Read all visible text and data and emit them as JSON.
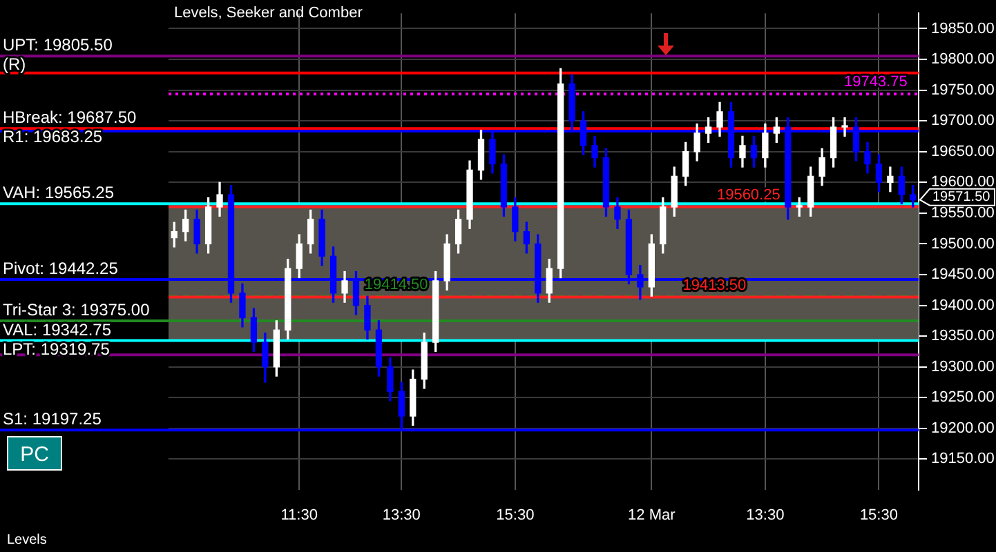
{
  "chart_data": {
    "type": "candlestick",
    "title": "Levels, Seeker and Comber",
    "categories": [
      null,
      null,
      null,
      null,
      null,
      null,
      null,
      null,
      null,
      null,
      null,
      "11:30",
      null,
      null,
      null,
      null,
      null,
      null,
      null,
      null,
      "13:30",
      null,
      null,
      null,
      null,
      null,
      null,
      null,
      null,
      null,
      "15:30",
      null,
      null,
      null,
      null,
      null,
      null,
      null,
      null,
      null,
      null,
      null,
      "12 Mar",
      null,
      null,
      null,
      null,
      null,
      null,
      null,
      null,
      null,
      "13:30",
      null,
      null,
      null,
      null,
      null,
      null,
      null,
      null,
      null,
      "15:30",
      null,
      null,
      null
    ],
    "ohlc": [
      [
        19510,
        19535,
        19495,
        19520
      ],
      [
        19520,
        19555,
        19505,
        19540
      ],
      [
        19540,
        19555,
        19485,
        19500
      ],
      [
        19500,
        19575,
        19485,
        19560
      ],
      [
        19560,
        19600,
        19545,
        19580
      ],
      [
        19580,
        19595,
        19405,
        19420
      ],
      [
        19420,
        19435,
        19365,
        19380
      ],
      [
        19380,
        19395,
        19325,
        19340
      ],
      [
        19340,
        19355,
        19275,
        19300
      ],
      [
        19300,
        19375,
        19285,
        19360
      ],
      [
        19360,
        19475,
        19345,
        19460
      ],
      [
        19460,
        19515,
        19445,
        19500
      ],
      [
        19500,
        19555,
        19485,
        19540
      ],
      [
        19540,
        19555,
        19465,
        19480
      ],
      [
        19480,
        19495,
        19405,
        19420
      ],
      [
        19420,
        19455,
        19405,
        19440
      ],
      [
        19440,
        19455,
        19385,
        19400
      ],
      [
        19400,
        19415,
        19345,
        19360
      ],
      [
        19360,
        19375,
        19285,
        19300
      ],
      [
        19300,
        19315,
        19245,
        19260
      ],
      [
        19260,
        19275,
        19200,
        19220
      ],
      [
        19220,
        19295,
        19205,
        19280
      ],
      [
        19280,
        19355,
        19265,
        19340
      ],
      [
        19340,
        19455,
        19325,
        19440
      ],
      [
        19440,
        19515,
        19425,
        19500
      ],
      [
        19500,
        19555,
        19485,
        19540
      ],
      [
        19540,
        19635,
        19525,
        19620
      ],
      [
        19620,
        19685,
        19605,
        19670
      ],
      [
        19670,
        19685,
        19615,
        19630
      ],
      [
        19630,
        19645,
        19545,
        19560
      ],
      [
        19560,
        19575,
        19505,
        19520
      ],
      [
        19520,
        19535,
        19485,
        19500
      ],
      [
        19500,
        19515,
        19405,
        19420
      ],
      [
        19420,
        19475,
        19405,
        19460
      ],
      [
        19460,
        19785,
        19445,
        19760
      ],
      [
        19760,
        19775,
        19685,
        19700
      ],
      [
        19700,
        19715,
        19645,
        19660
      ],
      [
        19660,
        19675,
        19625,
        19640
      ],
      [
        19640,
        19655,
        19545,
        19560
      ],
      [
        19560,
        19575,
        19525,
        19540
      ],
      [
        19540,
        19555,
        19435,
        19450
      ],
      [
        19450,
        19465,
        19410,
        19430
      ],
      [
        19430,
        19515,
        19415,
        19500
      ],
      [
        19500,
        19575,
        19485,
        19560
      ],
      [
        19560,
        19625,
        19545,
        19610
      ],
      [
        19610,
        19665,
        19595,
        19650
      ],
      [
        19650,
        19695,
        19635,
        19680
      ],
      [
        19680,
        19705,
        19665,
        19690
      ],
      [
        19690,
        19730,
        19675,
        19715
      ],
      [
        19715,
        19730,
        19625,
        19640
      ],
      [
        19640,
        19675,
        19625,
        19660
      ],
      [
        19660,
        19675,
        19625,
        19640
      ],
      [
        19640,
        19695,
        19625,
        19680
      ],
      [
        19680,
        19705,
        19665,
        19690
      ],
      [
        19690,
        19705,
        19540,
        19560
      ],
      [
        19560,
        19575,
        19545,
        19560
      ],
      [
        19560,
        19625,
        19545,
        19610
      ],
      [
        19610,
        19655,
        19595,
        19640
      ],
      [
        19640,
        19705,
        19625,
        19690
      ],
      [
        19690,
        19705,
        19675,
        19690
      ],
      [
        19690,
        19705,
        19635,
        19650
      ],
      [
        19650,
        19665,
        19615,
        19630
      ],
      [
        19630,
        19645,
        19585,
        19600
      ],
      [
        19600,
        19625,
        19585,
        19610
      ],
      [
        19610,
        19625,
        19565,
        19580
      ],
      [
        19580,
        19595,
        19560,
        19571.5
      ]
    ],
    "colors": [
      "#ffffff",
      "#ffffff",
      "#0000ff",
      "#ffffff",
      "#ffffff",
      "#0000ff",
      "#0000ff",
      "#0000ff",
      "#0000ff",
      "#ffffff",
      "#ffffff",
      "#ffffff",
      "#ffffff",
      "#0000ff",
      "#0000ff",
      "#ffffff",
      "#0000ff",
      "#0000ff",
      "#0000ff",
      "#0000ff",
      "#0000ff",
      "#ffffff",
      "#ffffff",
      "#ffffff",
      "#ffffff",
      "#ffffff",
      "#ffffff",
      "#ffffff",
      "#0000ff",
      "#0000ff",
      "#0000ff",
      "#0000ff",
      "#0000ff",
      "#ffffff",
      "#ffffff",
      "#0000ff",
      "#0000ff",
      "#0000ff",
      "#0000ff",
      "#0000ff",
      "#0000ff",
      "#0000ff",
      "#ffffff",
      "#ffffff",
      "#ffffff",
      "#ffffff",
      "#ffffff",
      "#ffffff",
      "#ffffff",
      "#0000ff",
      "#ffffff",
      "#0000ff",
      "#ffffff",
      "#ffffff",
      "#0000ff",
      "#ffffff",
      "#ffffff",
      "#ffffff",
      "#ffffff",
      "#ffffff",
      "#0000ff",
      "#0000ff",
      "#0000ff",
      "#ffffff",
      "#0000ff",
      "#0000ff"
    ],
    "ylim": [
      19100,
      19875
    ],
    "yticks": [
      {
        "value": 19150,
        "label": "19150.00"
      },
      {
        "value": 19200,
        "label": "19200.00"
      },
      {
        "value": 19250,
        "label": "19250.00"
      },
      {
        "value": 19300,
        "label": "19300.00"
      },
      {
        "value": 19350,
        "label": "19350.00"
      },
      {
        "value": 19400,
        "label": "19400.00"
      },
      {
        "value": 19450,
        "label": "19450.00"
      },
      {
        "value": 19500,
        "label": "19500.00"
      },
      {
        "value": 19550,
        "label": "19550.00"
      },
      {
        "value": 19600,
        "label": "19600.00"
      },
      {
        "value": 19650,
        "label": "19650.00"
      },
      {
        "value": 19700,
        "label": "19700.00"
      },
      {
        "value": 19750,
        "label": "19750.00"
      },
      {
        "value": 19800,
        "label": "19800.00"
      },
      {
        "value": 19850,
        "label": "19850.00"
      }
    ],
    "bands": [
      {
        "axis": "y",
        "from": 19342.75,
        "to": 19565.25,
        "color": "#55534b"
      }
    ],
    "ref_lines": [
      {
        "axis": "y",
        "value": 19805.5,
        "label": "UPT: 19805.50",
        "color": "#800080"
      },
      {
        "axis": "y",
        "value": 19778,
        "label": "(R)",
        "color": "#ff0000"
      },
      {
        "axis": "y",
        "value": 19743.75,
        "color": "#ff00ff",
        "line_style": "dotted"
      },
      {
        "axis": "y",
        "value": 19687.5,
        "label": "HBreak: 19687.50",
        "color": "#ff0000"
      },
      {
        "axis": "y",
        "value": 19683.25,
        "label": "R1: 19683.25",
        "color": "#0000ff"
      },
      {
        "axis": "y",
        "value": 19565.25,
        "label": "VAH: 19565.25",
        "color": "#00ffff"
      },
      {
        "axis": "y",
        "value": 19560.25,
        "color": "#ff2020"
      },
      {
        "axis": "y",
        "value": 19442.25,
        "label": "Pivot: 19442.25",
        "color": "#0000ff"
      },
      {
        "axis": "y",
        "value": 19414.5,
        "color": "#228b22",
        "line_style": "dashed"
      },
      {
        "axis": "y",
        "value": 19413.5,
        "color": "#ff2020"
      },
      {
        "axis": "y",
        "value": 19375,
        "label": "Tri-Star 3: 19375.00",
        "color": "#228b22"
      },
      {
        "axis": "y",
        "value": 19342.75,
        "label": "VAL: 19342.75",
        "color": "#00ffff"
      },
      {
        "axis": "y",
        "value": 19319.75,
        "label": "LPT: 19319.75",
        "color": "#800080"
      },
      {
        "axis": "y",
        "value": 19197.25,
        "label": "S1: 19197.25",
        "color": "#0000ff"
      }
    ],
    "annotations": [
      "Levels",
      "PC",
      {
        "text": "19743.75",
        "y": 19743.75
      },
      {
        "text": "19560.25",
        "y": 19560.25
      },
      {
        "text": "19414.50",
        "y": 19414.5
      },
      {
        "text": "19413.50",
        "y": 19413.5
      },
      "19571.50"
    ],
    "grid": true,
    "legend": false
  }
}
